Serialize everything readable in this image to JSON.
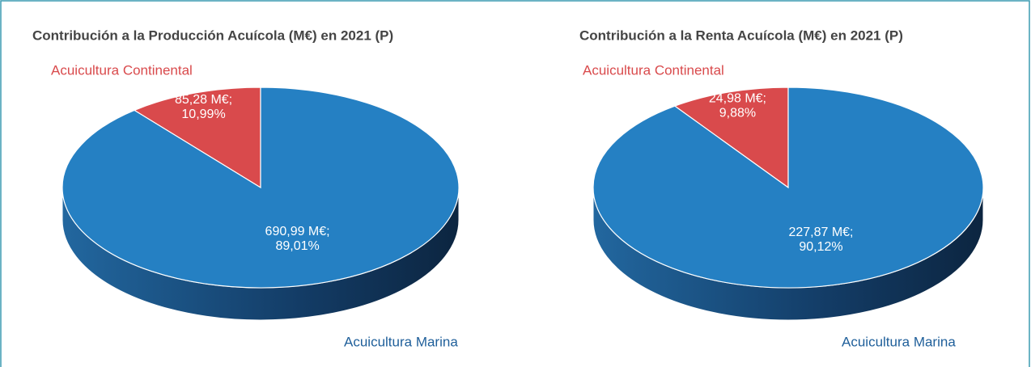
{
  "chart_data": [
    {
      "type": "pie",
      "title": "Contribución a la Producción Acuícola (M€) en 2021 (P)",
      "categories": [
        "Acuicultura Continental",
        "Acuicultura Marina"
      ],
      "values": [
        85.28,
        690.99
      ],
      "value_labels": [
        "85,28 M€;\n10,99%",
        "690,99 M€;\n89,01%"
      ],
      "colors": [
        "#d94a4c",
        "#2580c3"
      ]
    },
    {
      "type": "pie",
      "title": "Contribución a la Renta Acuícola (M€) en 2021 (P)",
      "categories": [
        "Acuicultura Continental",
        "Acuicultura Marina"
      ],
      "values": [
        24.98,
        227.87
      ],
      "value_labels": [
        "24,98 M€;\n9,88%",
        "227,87 M€;\n90,12%"
      ],
      "colors": [
        "#d94a4c",
        "#2580c3"
      ]
    }
  ]
}
